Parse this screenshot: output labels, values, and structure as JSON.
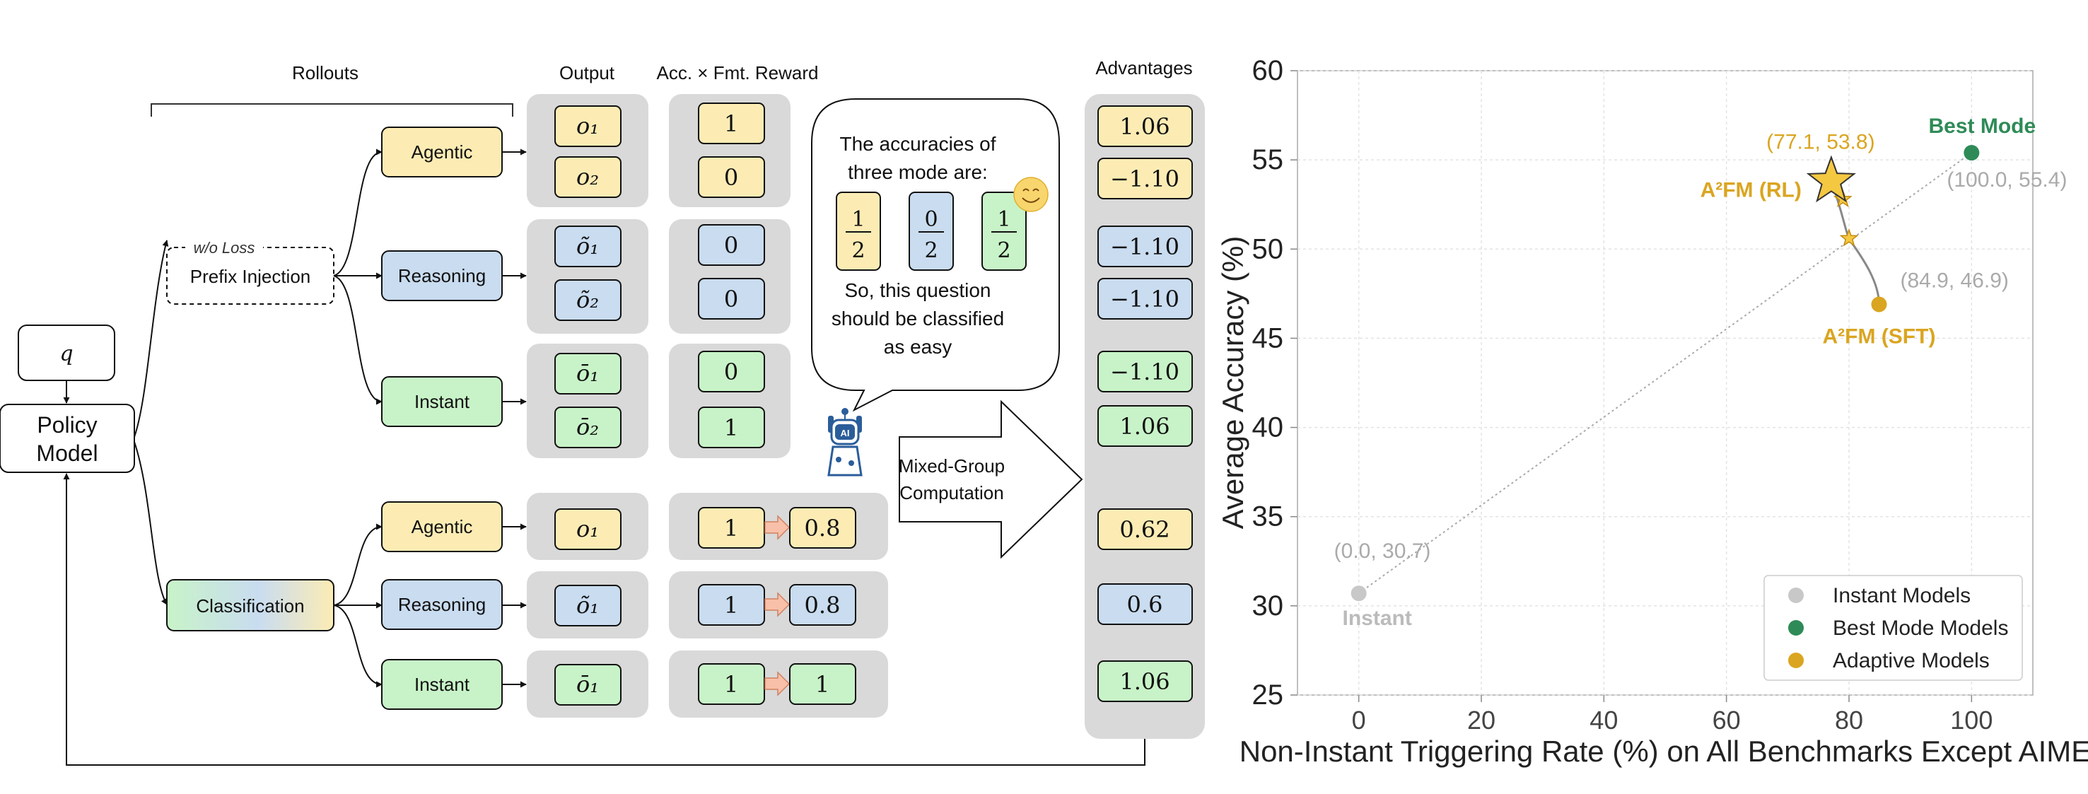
{
  "diagram": {
    "rollouts_title": "Rollouts",
    "output_title": "Output",
    "reward_title": "Acc. × Fmt. Reward",
    "advantages_title": "Advantages",
    "query": "q",
    "policy_model": [
      "Policy",
      "Model"
    ],
    "wo_loss": "w/o Loss",
    "prefix_injection": "Prefix Injection",
    "classification": "Classification",
    "modes": {
      "agentic": "Agentic",
      "reasoning": "Reasoning",
      "instant": "Instant"
    },
    "outputs": {
      "o1": "o₁",
      "o2": "o₂",
      "rt1": "õ₁",
      "rt2": "õ₂",
      "bar1": "ō₁",
      "bar2": "ō₂"
    },
    "rewards_prefix": [
      "1",
      "0",
      "0",
      "0",
      "0",
      "1"
    ],
    "rewards_class": [
      {
        "acc": "1",
        "final": "0.8"
      },
      {
        "acc": "1",
        "final": "0.8"
      },
      {
        "acc": "1",
        "final": "1"
      }
    ],
    "advantages": [
      "1.06",
      "−1.10",
      "−1.10",
      "−1.10",
      "−1.10",
      "1.06",
      "0.62",
      "0.6",
      "1.06"
    ],
    "bubble": {
      "line1": "The accuracies of",
      "line2": "three mode are:",
      "fractions": [
        {
          "num": "1",
          "den": "2"
        },
        {
          "num": "0",
          "den": "2"
        },
        {
          "num": "1",
          "den": "2"
        }
      ],
      "line3": "So, this question",
      "line4": "should be classified",
      "line5": "as easy"
    },
    "robot_label": "AI",
    "mixed_group": [
      "Mixed-Group",
      "Computation"
    ],
    "colors": {
      "agentic": "#fcecb4",
      "reasoning": "#c9dcf0",
      "instant": "#c8f3c8",
      "panel": "#d9d9d9",
      "arrow_fill": "#f8c0a8"
    }
  },
  "chart_data": {
    "type": "scatter",
    "xlabel": "Non-Instant Triggering Rate (%) on All Benchmarks Except AIME",
    "ylabel": "Average Accuracy (%)",
    "xlim": [
      -10,
      110
    ],
    "ylim": [
      25,
      60
    ],
    "xticks": [
      0,
      20,
      40,
      60,
      80,
      100
    ],
    "yticks": [
      25,
      30,
      35,
      40,
      45,
      50,
      55,
      60
    ],
    "grid": true,
    "legend_position": "bottom-right",
    "series": [
      {
        "name": "Instant Models",
        "color": "#c8c8c8",
        "points": [
          {
            "x": 0.0,
            "y": 30.7,
            "coord_label": "(0.0, 30.7)",
            "point_label": "Instant"
          }
        ]
      },
      {
        "name": "Best Mode Models",
        "color": "#2e8b57",
        "points": [
          {
            "x": 100.0,
            "y": 55.4,
            "coord_label": "(100.0, 55.4)",
            "point_label": "Best Mode"
          }
        ]
      },
      {
        "name": "Adaptive Models",
        "color": "#daa520",
        "points": [
          {
            "x": 84.9,
            "y": 46.9,
            "coord_label": "(84.9, 46.9)",
            "point_label": "A²FM (SFT)"
          }
        ]
      }
    ],
    "highlight": {
      "x": 77.1,
      "y": 53.8,
      "coord_label": "(77.1, 53.8)",
      "point_label": "A²FM (RL)",
      "color": "#f5c842"
    },
    "trajectory_points": [
      {
        "x": 80.0,
        "y": 50.6
      },
      {
        "x": 79.0,
        "y": 52.8
      }
    ]
  }
}
